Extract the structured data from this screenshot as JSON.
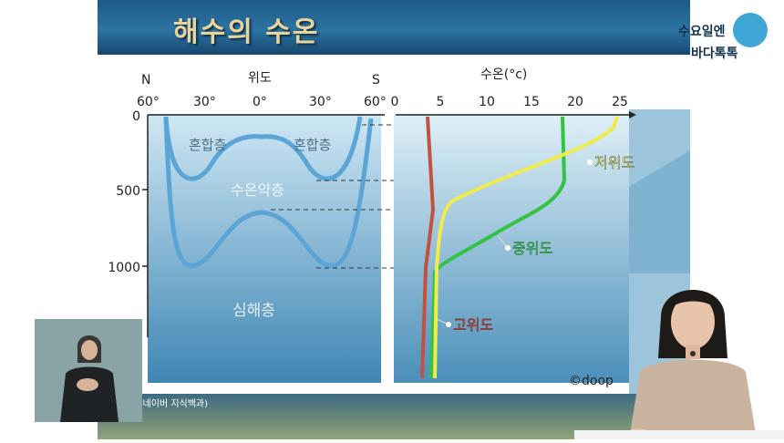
{
  "slide": {
    "title": "해수의 수온",
    "logo": {
      "line1": "수요일엔",
      "line2": "바다톡톡"
    },
    "credit": ": 네이버 지식백과)",
    "copyright": "©doop"
  },
  "colors": {
    "banner": "#2c74a3",
    "curve_high_lat": "#c0533f",
    "curve_mid_lat": "#33c244",
    "curve_low_lat": "#f0ea4a",
    "ocean_layer": "#4e9bd0"
  },
  "left_panel": {
    "lat_label": "위도",
    "north": "N",
    "south": "S",
    "lat_ticks": [
      "60°",
      "30°",
      "0°",
      "30°",
      "60°"
    ],
    "depth_ticks": [
      "0",
      "500",
      "1000"
    ],
    "layers": {
      "mixed_left": "혼합층",
      "mixed_right": "혼합층",
      "thermocline": "수온약층",
      "deep": "심해층"
    }
  },
  "right_panel": {
    "temp_label": "수온(°c)",
    "temp_ticks": [
      "0",
      "5",
      "10",
      "15",
      "20",
      "25"
    ],
    "curves": {
      "low_lat": "저위도",
      "mid_lat": "중위도",
      "high_lat": "고위도"
    }
  },
  "chart_data": {
    "type": "line",
    "x_label": "수온(°c)",
    "y_label": "",
    "xlim": [
      0,
      25
    ],
    "y_ticks": [
      0,
      500,
      1000
    ],
    "series": [
      {
        "name": "저위도",
        "points": [
          [
            24,
            0
          ],
          [
            23,
            100
          ],
          [
            8,
            400
          ],
          [
            4,
            700
          ],
          [
            3,
            1000
          ],
          [
            2.5,
            1400
          ]
        ]
      },
      {
        "name": "중위도",
        "points": [
          [
            18,
            0
          ],
          [
            18,
            400
          ],
          [
            15,
            550
          ],
          [
            7,
            850
          ],
          [
            4,
            1000
          ],
          [
            3,
            1400
          ]
        ]
      },
      {
        "name": "고위도",
        "points": [
          [
            3,
            0
          ],
          [
            3.5,
            600
          ],
          [
            2.5,
            1000
          ],
          [
            2,
            1400
          ]
        ]
      }
    ]
  }
}
